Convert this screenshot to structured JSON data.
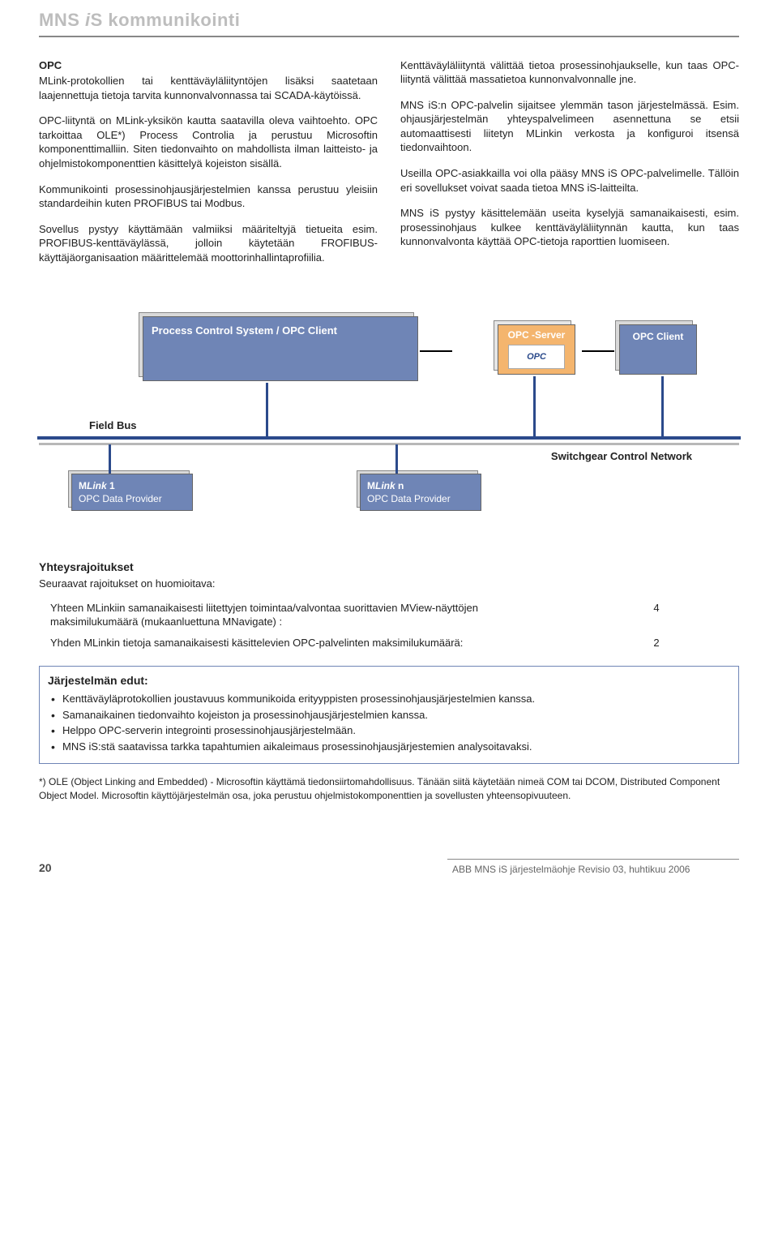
{
  "header": {
    "title_pre": "MNS ",
    "title_it": "i",
    "title_post": "S kommunikointi"
  },
  "left": {
    "h1": "OPC",
    "p1": "MLink-protokollien tai kenttäväyläliityntöjen lisäksi saatetaan laajennettuja tietoja tarvita kunnonvalvonnassa tai SCADA-käytöissä.",
    "p2": "OPC-liityntä on MLink-yksikön kautta saatavilla oleva vaihtoehto. OPC tarkoittaa OLE*) Process Controlia ja perustuu Microsoftin komponenttimalliin. Siten tiedonvaihto on mahdollista ilman laitteisto- ja ohjelmistokomponenttien käsittelyä kojeiston sisällä.",
    "p3": "Kommunikointi prosessinohjausjärjestelmien kanssa perustuu yleisiin standardeihin kuten PROFIBUS tai Modbus.",
    "p4": "Sovellus pystyy käyttämään valmiiksi määriteltyjä tietueita esim. PROFIBUS-kenttäväylässä, jolloin käytetään FROFIBUS-käyttäjäorganisaation määrittelemää moottorinhallintaprofiilia."
  },
  "right": {
    "p1": "Kenttäväyläliityntä välittää tietoa prosessinohjaukselle, kun taas OPC-liityntä välittää massatietoa kunnonvalvonnalle jne.",
    "p2": "MNS iS:n OPC-palvelin sijaitsee ylemmän tason järjestelmässä. Esim. ohjausjärjestelmän yhteyspalvelimeen asennettuna se etsii automaattisesti liitetyn MLinkin verkosta ja konfiguroi itsensä tiedonvaihtoon.",
    "p3": "Useilla OPC-asiakkailla voi olla pääsy MNS iS OPC-palvelimelle. Tällöin eri sovellukset voivat saada tietoa MNS iS-laitteilta.",
    "p4": "MNS iS pystyy käsittelemään useita kyselyjä samanaikaisesti, esim. prosessinohjaus kulkee kenttäväyläliitynnän kautta, kun taas kunnonvalvonta käyttää OPC-tietoja raporttien luomiseen."
  },
  "diagram": {
    "pcs": "Process Control System  /  OPC Client",
    "opcserver": "OPC -Server",
    "opclogo": "OPC",
    "opcclient": "OPC Client",
    "fieldbus": "Field Bus",
    "scn": "Switchgear Control Network",
    "mlink1_a": "MLink  1",
    "mlink1_b": "OPC Data Provider",
    "mlinkn_a": "MLink  n",
    "mlinkn_b": "OPC Data Provider"
  },
  "limits": {
    "title": "Yhteysrajoitukset",
    "intro": "Seuraavat rajoitukset on huomioitava:",
    "row1": "Yhteen MLinkiin samanaikaisesti liitettyjen toimintaa/valvontaa suorittavien MView-näyttöjen maksimilukumäärä (mukaanluettuna MNavigate) :",
    "row1_num": "4",
    "row2": "Yhden MLinkin tietoja samanaikaisesti käsittelevien OPC-palvelinten maksimilukumäärä:",
    "row2_num": "2"
  },
  "benefits": {
    "title": "Järjestelmän edut:",
    "b1": "Kenttäväyläprotokollien joustavuus kommunikoida erityyppisten prosessinohjausjärjestelmien kanssa.",
    "b2": "Samanaikainen tiedonvaihto kojeiston ja prosessinohjausjärjestelmien kanssa.",
    "b3": "Helppo OPC-serverin integrointi prosessinohjausjärjestelmään.",
    "b4": "MNS iS:stä saatavissa tarkka tapahtumien aikaleimaus prosessinohjausjärjestemien analysoitavaksi."
  },
  "footnote": "*) OLE (Object Linking and Embedded) - Microsoftin käyttämä tiedonsiirtomahdollisuus. Tänään siitä käytetään nimeä COM tai DCOM, Distributed Component Object Model. Microsoftin käyttöjärjestelmän osa, joka perustuu ohjelmistokomponenttien ja sovellusten yhteensopivuuteen.",
  "footer": {
    "page": "20",
    "right": "ABB MNS iS järjestelmäohje  Revisio 03, huhtikuu 2006"
  }
}
